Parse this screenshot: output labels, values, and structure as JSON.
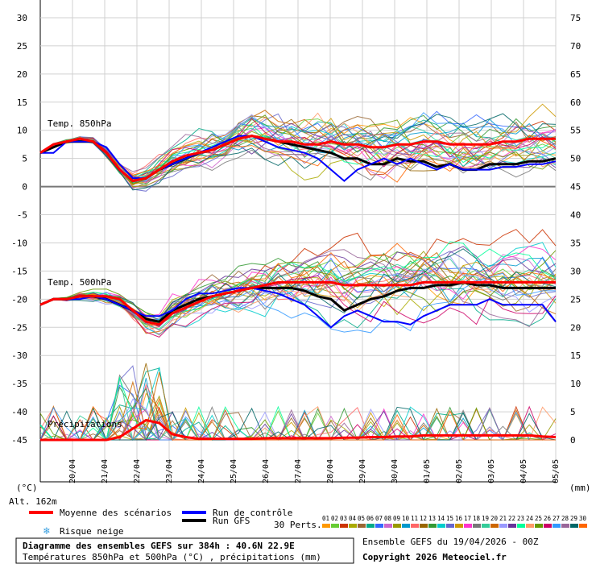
{
  "chart_data": {
    "type": "line",
    "title": "Diagramme des ensembles GEFS sur 384h : 40.6N 22.9E",
    "subtitle": "Températures 850hPa et 500hPa (°C) , précipitations (mm)",
    "source_line": "Ensemble GEFS du 19/04/2026 - 00Z",
    "copyright": "Copyright 2026 Meteociel.fr",
    "altitude": "Alt. 162m",
    "left_axis_unit": "(°C)",
    "right_axis_unit": "(mm)",
    "left_ticks": [
      "30",
      "25",
      "20",
      "15",
      "10",
      "5",
      "0",
      "-5",
      "-10",
      "-15",
      "-20",
      "-25",
      "-30",
      "-35",
      "-40",
      "-45"
    ],
    "right_ticks": [
      "75",
      "70",
      "65",
      "60",
      "55",
      "50",
      "45",
      "40",
      "35",
      "30",
      "25",
      "20",
      "15",
      "10",
      "5",
      "0"
    ],
    "ylim_left": [
      -45,
      30
    ],
    "ylim_right": [
      0,
      75
    ],
    "dates": [
      "20/04",
      "21/04",
      "22/04",
      "23/04",
      "24/04",
      "25/04",
      "26/04",
      "27/04",
      "28/04",
      "29/04",
      "30/04",
      "01/05",
      "02/05",
      "03/05",
      "04/05",
      "05/05"
    ],
    "panel_labels": {
      "t850": "Temp. 850hPa",
      "t500": "Temp. 500hPa",
      "precip": "Précipitations"
    },
    "legend": {
      "mean": "Moyenne des scénarios",
      "control": "Run de contrôle",
      "gfs": "Run GFS",
      "snow": "Risque neige",
      "perts": "30 Perts.",
      "perts_ids": [
        "01",
        "02",
        "03",
        "04",
        "05",
        "06",
        "07",
        "08",
        "09",
        "10",
        "11",
        "12",
        "13",
        "14",
        "15",
        "16",
        "17",
        "18",
        "19",
        "20",
        "21",
        "22",
        "23",
        "24",
        "25",
        "26",
        "27",
        "28",
        "29",
        "30"
      ]
    },
    "colors": {
      "mean": "#ff0000",
      "control": "#0000ff",
      "gfs": "#000000",
      "snow": "#3aa0e0",
      "perts": [
        "#ff9900",
        "#66cc33",
        "#cc3300",
        "#aaaa00",
        "#996633",
        "#00aa88",
        "#3366ff",
        "#cc66cc",
        "#999900",
        "#0099cc",
        "#ff6666",
        "#996600",
        "#339933",
        "#00cccc",
        "#6666cc",
        "#cc9900",
        "#ff33cc",
        "#777777",
        "#33cc99",
        "#cc6600",
        "#9999ff",
        "#663399",
        "#00ff99",
        "#ff9966",
        "#669900",
        "#cc0066",
        "#3399ff",
        "#996699",
        "#006666",
        "#ff6600"
      ]
    },
    "series": [
      {
        "name": "Moyenne des scénarios",
        "t850": [
          6,
          7.5,
          8,
          8.5,
          8,
          6,
          3,
          1,
          1.5,
          3,
          4.5,
          5.5,
          6,
          6.5,
          7.5,
          8.5,
          9,
          8.5,
          8,
          8,
          7.5,
          7.5,
          8,
          7.5,
          7.5,
          7,
          7,
          7.5,
          7.5,
          8,
          8,
          7.5,
          7.5,
          7.5,
          7.5,
          8,
          8,
          8.5,
          8.5,
          8.5
        ],
        "t500": [
          -21,
          -20,
          -20,
          -19.5,
          -19.5,
          -19.5,
          -20,
          -22,
          -24,
          -24.5,
          -22.5,
          -21.5,
          -20.5,
          -19.5,
          -19,
          -18.5,
          -18,
          -17.5,
          -17,
          -17,
          -17,
          -17,
          -17,
          -17.5,
          -17.5,
          -17.5,
          -17.5,
          -17.5,
          -17.5,
          -17,
          -17,
          -17,
          -17,
          -17,
          -17,
          -17,
          -17,
          -17,
          -17,
          -17
        ],
        "precip": [
          0,
          0,
          0,
          0,
          0,
          0,
          0.5,
          2,
          3.5,
          3,
          1,
          0.5,
          0.2,
          0.2,
          0.2,
          0.2,
          0.2,
          0.3,
          0.3,
          0.3,
          0.3,
          0.3,
          0.3,
          0.4,
          0.4,
          0.5,
          0.5,
          0.6,
          0.6,
          0.8,
          0.8,
          0.8,
          0.8,
          0.8,
          0.8,
          0.8,
          0.8,
          0.8,
          0.6,
          0.5
        ]
      },
      {
        "name": "Run de contrôle",
        "t850": [
          6,
          6,
          8,
          8,
          8,
          7,
          4,
          1.5,
          1.5,
          3,
          4,
          5,
          6,
          7,
          8,
          9,
          9,
          8,
          7,
          6.5,
          6,
          5,
          3,
          1,
          3,
          4,
          5,
          4,
          5,
          4,
          3,
          4,
          3,
          3,
          3,
          3.5,
          3.5,
          4,
          4,
          4.5
        ],
        "t500": [
          -21,
          -20,
          -20,
          -20,
          -19.5,
          -20,
          -21,
          -22,
          -23,
          -23,
          -22,
          -20,
          -19,
          -19,
          -18.5,
          -18,
          -18,
          -18.5,
          -19,
          -20,
          -21,
          -23,
          -25,
          -23,
          -22,
          -23,
          -24,
          -24,
          -24.5,
          -23,
          -22,
          -21,
          -21,
          -21,
          -20,
          -21,
          -21,
          -21,
          -21,
          -24
        ]
      },
      {
        "name": "Run GFS",
        "t850": [
          6,
          7,
          8,
          8,
          8,
          6,
          3,
          1,
          1.5,
          3,
          4,
          5,
          6,
          6.5,
          7.5,
          8.5,
          9,
          8.5,
          8,
          7.5,
          7,
          6.5,
          6,
          5,
          5,
          4,
          4,
          5,
          4.5,
          4.5,
          3.5,
          4,
          3,
          3,
          4,
          4,
          4,
          4.5,
          4.5,
          5
        ],
        "t500": [
          -21,
          -20,
          -20,
          -19.5,
          -19.5,
          -20,
          -21,
          -22,
          -23.5,
          -24,
          -22,
          -21,
          -20,
          -19.5,
          -19,
          -18.5,
          -18,
          -18,
          -18,
          -18,
          -18.5,
          -19.5,
          -20,
          -22,
          -21,
          -20,
          -19.5,
          -18.5,
          -18,
          -18,
          -17.5,
          -17.5,
          -17,
          -17.5,
          -17.5,
          -18,
          -18,
          -18,
          -18,
          -18
        ]
      }
    ]
  }
}
